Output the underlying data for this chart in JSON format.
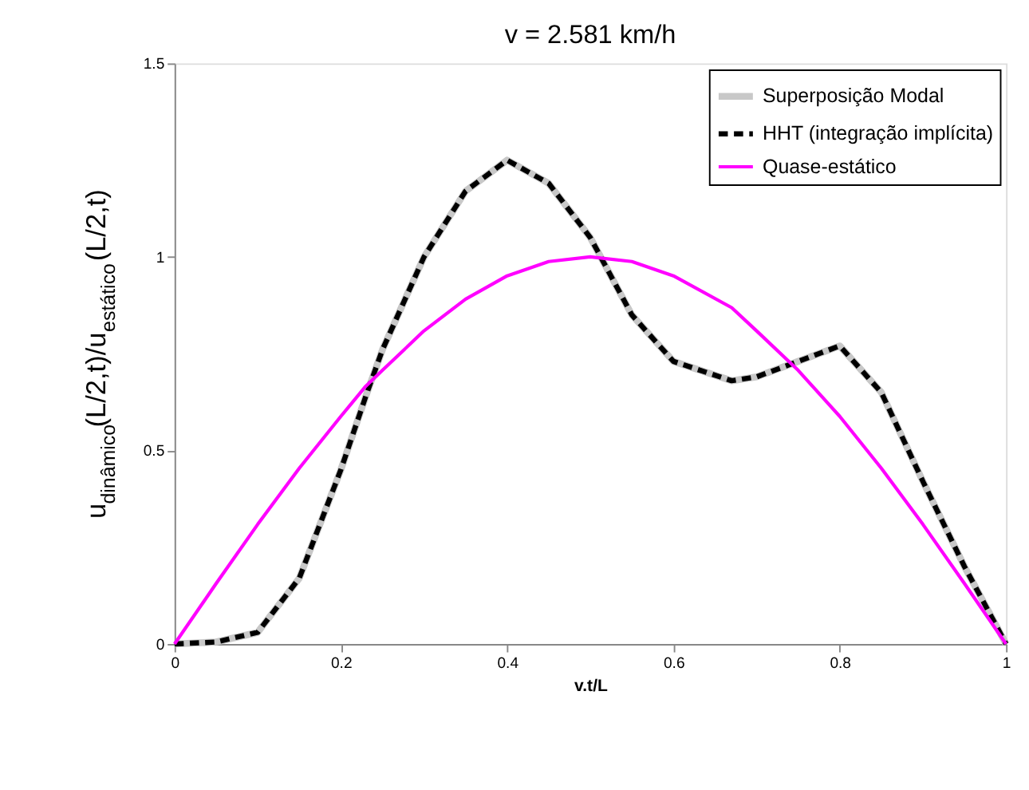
{
  "chart_data": {
    "type": "line",
    "title": "v = 2.581 km/h",
    "xlabel": "v.t/L",
    "ylabel": "u$_{dinâmico}$(L/2,t)/u$_{estático}$(L/2,t)",
    "x": [
      0,
      0.05,
      0.1,
      0.15,
      0.2,
      0.23,
      0.25,
      0.3,
      0.35,
      0.4,
      0.45,
      0.5,
      0.55,
      0.6,
      0.67,
      0.7,
      0.75,
      0.8,
      0.85,
      0.9,
      0.95,
      1
    ],
    "series": [
      {
        "name": "Superposição Modal",
        "color": "#c8c8c8",
        "line_style": "solid",
        "values": [
          0,
          0.005,
          0.03,
          0.17,
          0.45,
          0.64,
          0.76,
          1.0,
          1.17,
          1.25,
          1.19,
          1.05,
          0.85,
          0.73,
          0.68,
          0.69,
          0.73,
          0.77,
          0.65,
          0.42,
          0.2,
          0
        ]
      },
      {
        "name": "HHT (integração implícita)",
        "color": "#000000",
        "line_style": "dashed",
        "values": [
          0,
          0.005,
          0.03,
          0.17,
          0.45,
          0.64,
          0.76,
          1.0,
          1.17,
          1.25,
          1.19,
          1.05,
          0.85,
          0.73,
          0.68,
          0.69,
          0.73,
          0.77,
          0.65,
          0.42,
          0.2,
          0
        ]
      },
      {
        "name": "Quase-estático",
        "color": "#ff00ff",
        "line_style": "solid",
        "values": [
          0,
          0.156,
          0.309,
          0.454,
          0.588,
          0.666,
          0.707,
          0.809,
          0.891,
          0.951,
          0.988,
          1.0,
          0.988,
          0.951,
          0.869,
          0.809,
          0.707,
          0.588,
          0.454,
          0.309,
          0.156,
          0
        ]
      }
    ],
    "xlim": [
      0,
      1
    ],
    "xticks": [
      0,
      0.2,
      0.4,
      0.6,
      0.8,
      1
    ],
    "ylim": [
      0,
      1.5
    ],
    "yticks": [
      0,
      0.5,
      1,
      1.5
    ],
    "grid": false,
    "legend": "top right",
    "marker": "none"
  }
}
